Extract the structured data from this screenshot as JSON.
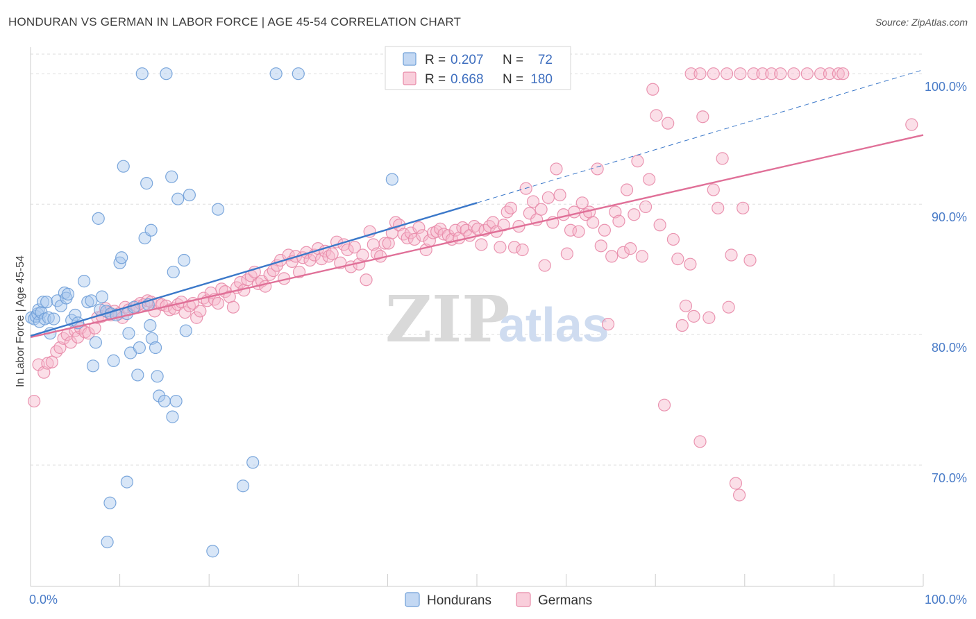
{
  "title": "HONDURAN VS GERMAN IN LABOR FORCE | AGE 45-54 CORRELATION CHART",
  "source": "Source: ZipAtlas.com",
  "watermark": {
    "zip": "ZIP",
    "atlas": "atlas"
  },
  "colors": {
    "hondurans_fill": "#a9c7ee",
    "hondurans_stroke": "#6f9fd8",
    "hondurans_line": "#3b78c9",
    "germans_fill": "#f6b9cc",
    "germans_stroke": "#e88aa8",
    "germans_line": "#e07098",
    "grid": "#dddddd",
    "tick_text": "#4a7cc8"
  },
  "legend": {
    "r_label": "R =",
    "n_label": "N =",
    "hondurans": {
      "r": "0.207",
      "n": "72"
    },
    "germans": {
      "r": "0.668",
      "n": "180"
    }
  },
  "chart_data": {
    "type": "scatter",
    "title": "HONDURAN VS GERMAN IN LABOR FORCE | AGE 45-54 CORRELATION CHART",
    "xlabel": "",
    "ylabel": "In Labor Force | Age 45-54",
    "xlim": [
      0,
      100
    ],
    "ylim": [
      60.7,
      101.5
    ],
    "x_tick_labels": [
      "0.0%",
      "100.0%"
    ],
    "y_ticks": [
      70,
      80,
      90,
      100
    ],
    "y_tick_labels": [
      "70.0%",
      "80.0%",
      "90.0%",
      "100.0%"
    ],
    "grid": true,
    "legend_position": "top-center",
    "series": [
      {
        "name": "Hondurans",
        "trend": {
          "x": [
            0,
            50
          ],
          "y": [
            79.9,
            90.1
          ],
          "dashed_extension": {
            "x": [
              50,
              100
            ],
            "y": [
              90.1,
              100.3
            ]
          }
        },
        "points": [
          [
            0.1,
            81.3
          ],
          [
            0.4,
            81.2
          ],
          [
            0.6,
            81.4
          ],
          [
            0.8,
            81.6
          ],
          [
            0.9,
            81.9
          ],
          [
            1.0,
            81.0
          ],
          [
            1.2,
            81.7
          ],
          [
            1.4,
            82.5
          ],
          [
            1.6,
            81.2
          ],
          [
            1.8,
            82.5
          ],
          [
            2.0,
            81.3
          ],
          [
            2.2,
            80.1
          ],
          [
            2.6,
            81.2
          ],
          [
            3.0,
            82.6
          ],
          [
            3.4,
            82.2
          ],
          [
            3.8,
            83.2
          ],
          [
            4.0,
            82.8
          ],
          [
            4.2,
            83.1
          ],
          [
            4.6,
            81.1
          ],
          [
            5.0,
            81.5
          ],
          [
            5.3,
            80.9
          ],
          [
            6.0,
            84.1
          ],
          [
            6.4,
            82.5
          ],
          [
            6.8,
            82.6
          ],
          [
            7.0,
            77.6
          ],
          [
            7.3,
            79.4
          ],
          [
            7.6,
            88.9
          ],
          [
            7.8,
            81.9
          ],
          [
            8.0,
            82.9
          ],
          [
            8.5,
            81.8
          ],
          [
            8.9,
            67.1
          ],
          [
            8.6,
            64.1
          ],
          [
            9.0,
            81.6
          ],
          [
            9.3,
            78.0
          ],
          [
            9.6,
            81.5
          ],
          [
            10.0,
            85.5
          ],
          [
            10.2,
            85.9
          ],
          [
            10.4,
            92.9
          ],
          [
            10.8,
            81.6
          ],
          [
            10.8,
            68.7
          ],
          [
            11.0,
            80.1
          ],
          [
            11.2,
            78.6
          ],
          [
            11.6,
            82.1
          ],
          [
            12.0,
            76.9
          ],
          [
            12.2,
            79.0
          ],
          [
            12.5,
            100.0
          ],
          [
            12.8,
            87.4
          ],
          [
            13.0,
            91.6
          ],
          [
            13.2,
            82.3
          ],
          [
            13.4,
            80.7
          ],
          [
            13.5,
            88.0
          ],
          [
            13.6,
            79.7
          ],
          [
            14.0,
            79.0
          ],
          [
            14.2,
            76.8
          ],
          [
            14.4,
            75.3
          ],
          [
            15.0,
            74.9
          ],
          [
            15.2,
            100.0
          ],
          [
            15.8,
            92.1
          ],
          [
            15.9,
            73.7
          ],
          [
            16.0,
            84.8
          ],
          [
            16.3,
            74.9
          ],
          [
            16.5,
            90.4
          ],
          [
            17.2,
            85.7
          ],
          [
            17.4,
            80.3
          ],
          [
            17.8,
            90.7
          ],
          [
            20.4,
            63.4
          ],
          [
            21.0,
            89.6
          ],
          [
            23.8,
            68.4
          ],
          [
            24.9,
            70.2
          ],
          [
            27.5,
            100.0
          ],
          [
            30.0,
            100.0
          ],
          [
            40.5,
            91.9
          ]
        ]
      },
      {
        "name": "Germans",
        "trend": {
          "x": [
            0,
            100
          ],
          "y": [
            79.8,
            95.3
          ]
        },
        "points": [
          [
            0.4,
            74.9
          ],
          [
            0.9,
            77.7
          ],
          [
            1.5,
            77.1
          ],
          [
            1.9,
            77.8
          ],
          [
            2.4,
            77.9
          ],
          [
            2.9,
            78.7
          ],
          [
            3.3,
            79.0
          ],
          [
            3.7,
            79.7
          ],
          [
            4.1,
            80.0
          ],
          [
            4.5,
            79.4
          ],
          [
            5.0,
            80.3
          ],
          [
            5.3,
            79.8
          ],
          [
            5.6,
            80.5
          ],
          [
            6.1,
            80.2
          ],
          [
            6.5,
            80.1
          ],
          [
            7.2,
            80.5
          ],
          [
            7.5,
            81.3
          ],
          [
            8.0,
            81.4
          ],
          [
            8.4,
            82.0
          ],
          [
            8.7,
            81.7
          ],
          [
            9.0,
            81.5
          ],
          [
            9.4,
            81.8
          ],
          [
            9.9,
            81.6
          ],
          [
            10.3,
            81.3
          ],
          [
            10.6,
            82.1
          ],
          [
            11.0,
            81.9
          ],
          [
            11.5,
            82.0
          ],
          [
            11.9,
            82.2
          ],
          [
            12.3,
            82.4
          ],
          [
            12.7,
            82.3
          ],
          [
            13.1,
            82.6
          ],
          [
            13.5,
            82.5
          ],
          [
            13.9,
            81.8
          ],
          [
            14.3,
            82.4
          ],
          [
            14.7,
            82.3
          ],
          [
            15.2,
            82.2
          ],
          [
            15.6,
            81.9
          ],
          [
            16.1,
            82.0
          ],
          [
            16.5,
            82.3
          ],
          [
            16.9,
            82.5
          ],
          [
            17.3,
            81.7
          ],
          [
            17.8,
            82.2
          ],
          [
            18.2,
            82.4
          ],
          [
            18.6,
            81.3
          ],
          [
            19.0,
            81.8
          ],
          [
            19.4,
            82.8
          ],
          [
            19.8,
            82.6
          ],
          [
            20.2,
            83.2
          ],
          [
            20.6,
            82.7
          ],
          [
            21.0,
            82.4
          ],
          [
            21.4,
            83.5
          ],
          [
            21.8,
            83.3
          ],
          [
            22.3,
            82.9
          ],
          [
            22.7,
            82.1
          ],
          [
            23.1,
            83.6
          ],
          [
            23.5,
            84.0
          ],
          [
            23.9,
            83.4
          ],
          [
            24.3,
            84.2
          ],
          [
            24.7,
            84.5
          ],
          [
            25.1,
            84.8
          ],
          [
            25.5,
            83.9
          ],
          [
            25.9,
            84.1
          ],
          [
            26.3,
            83.7
          ],
          [
            26.8,
            84.6
          ],
          [
            27.2,
            84.9
          ],
          [
            27.6,
            85.3
          ],
          [
            28.0,
            85.7
          ],
          [
            28.4,
            84.3
          ],
          [
            28.9,
            86.1
          ],
          [
            29.3,
            85.6
          ],
          [
            29.7,
            86.0
          ],
          [
            30.1,
            84.8
          ],
          [
            30.5,
            85.9
          ],
          [
            30.9,
            86.3
          ],
          [
            31.3,
            85.7
          ],
          [
            31.8,
            86.1
          ],
          [
            32.2,
            86.6
          ],
          [
            32.6,
            85.8
          ],
          [
            33.0,
            86.4
          ],
          [
            33.4,
            86.0
          ],
          [
            33.8,
            86.2
          ],
          [
            34.3,
            87.1
          ],
          [
            34.7,
            85.5
          ],
          [
            35.1,
            86.9
          ],
          [
            35.5,
            86.5
          ],
          [
            35.9,
            85.2
          ],
          [
            36.3,
            86.7
          ],
          [
            36.8,
            85.4
          ],
          [
            37.2,
            86.1
          ],
          [
            37.6,
            84.2
          ],
          [
            38.0,
            87.9
          ],
          [
            38.4,
            86.9
          ],
          [
            38.8,
            86.2
          ],
          [
            39.2,
            86.0
          ],
          [
            39.7,
            87.0
          ],
          [
            40.1,
            87.0
          ],
          [
            40.5,
            87.8
          ],
          [
            40.9,
            88.6
          ],
          [
            41.3,
            88.4
          ],
          [
            41.8,
            87.7
          ],
          [
            42.2,
            87.4
          ],
          [
            42.6,
            87.8
          ],
          [
            43.0,
            87.3
          ],
          [
            43.5,
            88.2
          ],
          [
            43.9,
            87.6
          ],
          [
            44.3,
            86.5
          ],
          [
            44.7,
            87.2
          ],
          [
            45.1,
            87.8
          ],
          [
            45.5,
            87.9
          ],
          [
            45.9,
            88.1
          ],
          [
            46.3,
            87.7
          ],
          [
            46.8,
            87.6
          ],
          [
            47.2,
            87.3
          ],
          [
            47.6,
            88.0
          ],
          [
            48.0,
            87.4
          ],
          [
            48.4,
            88.2
          ],
          [
            48.8,
            88.0
          ],
          [
            49.2,
            87.6
          ],
          [
            49.7,
            88.3
          ],
          [
            50.1,
            88.1
          ],
          [
            50.5,
            86.9
          ],
          [
            50.9,
            88.0
          ],
          [
            51.4,
            88.3
          ],
          [
            51.8,
            88.6
          ],
          [
            52.2,
            87.9
          ],
          [
            52.6,
            86.7
          ],
          [
            53.0,
            88.4
          ],
          [
            53.4,
            89.4
          ],
          [
            53.8,
            89.7
          ],
          [
            54.2,
            86.7
          ],
          [
            54.7,
            88.3
          ],
          [
            55.1,
            86.5
          ],
          [
            55.5,
            91.2
          ],
          [
            55.9,
            89.3
          ],
          [
            56.3,
            90.2
          ],
          [
            56.7,
            88.8
          ],
          [
            57.2,
            89.6
          ],
          [
            57.6,
            85.3
          ],
          [
            58.0,
            90.5
          ],
          [
            58.5,
            88.6
          ],
          [
            58.9,
            92.7
          ],
          [
            59.3,
            90.7
          ],
          [
            59.7,
            89.2
          ],
          [
            60.1,
            86.2
          ],
          [
            60.5,
            88.0
          ],
          [
            60.9,
            89.4
          ],
          [
            61.4,
            87.9
          ],
          [
            61.8,
            90.1
          ],
          [
            62.2,
            89.2
          ],
          [
            62.6,
            89.4
          ],
          [
            63.0,
            88.6
          ],
          [
            63.5,
            92.7
          ],
          [
            63.9,
            86.8
          ],
          [
            64.3,
            88.0
          ],
          [
            64.7,
            80.8
          ],
          [
            65.1,
            86.0
          ],
          [
            65.5,
            89.4
          ],
          [
            65.9,
            88.7
          ],
          [
            66.4,
            86.3
          ],
          [
            66.8,
            91.1
          ],
          [
            67.2,
            86.6
          ],
          [
            67.6,
            89.2
          ],
          [
            68.0,
            93.3
          ],
          [
            68.5,
            86.0
          ],
          [
            68.9,
            89.8
          ],
          [
            69.3,
            91.9
          ],
          [
            69.7,
            98.8
          ],
          [
            70.1,
            96.8
          ],
          [
            70.5,
            88.4
          ],
          [
            71.0,
            74.6
          ],
          [
            71.4,
            96.2
          ],
          [
            72.0,
            87.3
          ],
          [
            72.5,
            85.8
          ],
          [
            73.0,
            80.7
          ],
          [
            73.4,
            82.2
          ],
          [
            73.9,
            85.4
          ],
          [
            74.3,
            81.4
          ],
          [
            75.0,
            71.8
          ],
          [
            75.3,
            96.7
          ],
          [
            76.0,
            81.3
          ],
          [
            76.5,
            91.1
          ],
          [
            77.0,
            89.7
          ],
          [
            77.5,
            93.5
          ],
          [
            78.2,
            82.1
          ],
          [
            78.5,
            86.1
          ],
          [
            79.0,
            68.6
          ],
          [
            79.4,
            67.7
          ],
          [
            79.8,
            89.7
          ],
          [
            80.6,
            85.7
          ],
          [
            74.0,
            100.0
          ],
          [
            75.0,
            100.0
          ],
          [
            76.5,
            100.0
          ],
          [
            78.0,
            100.0
          ],
          [
            79.5,
            100.0
          ],
          [
            81.0,
            100.0
          ],
          [
            82.0,
            100.0
          ],
          [
            83.0,
            100.0
          ],
          [
            84.0,
            100.0
          ],
          [
            85.5,
            100.0
          ],
          [
            87.0,
            100.0
          ],
          [
            88.5,
            100.0
          ],
          [
            89.5,
            100.0
          ],
          [
            90.5,
            100.0
          ],
          [
            91.0,
            100.0
          ],
          [
            98.7,
            96.1
          ]
        ]
      }
    ]
  }
}
